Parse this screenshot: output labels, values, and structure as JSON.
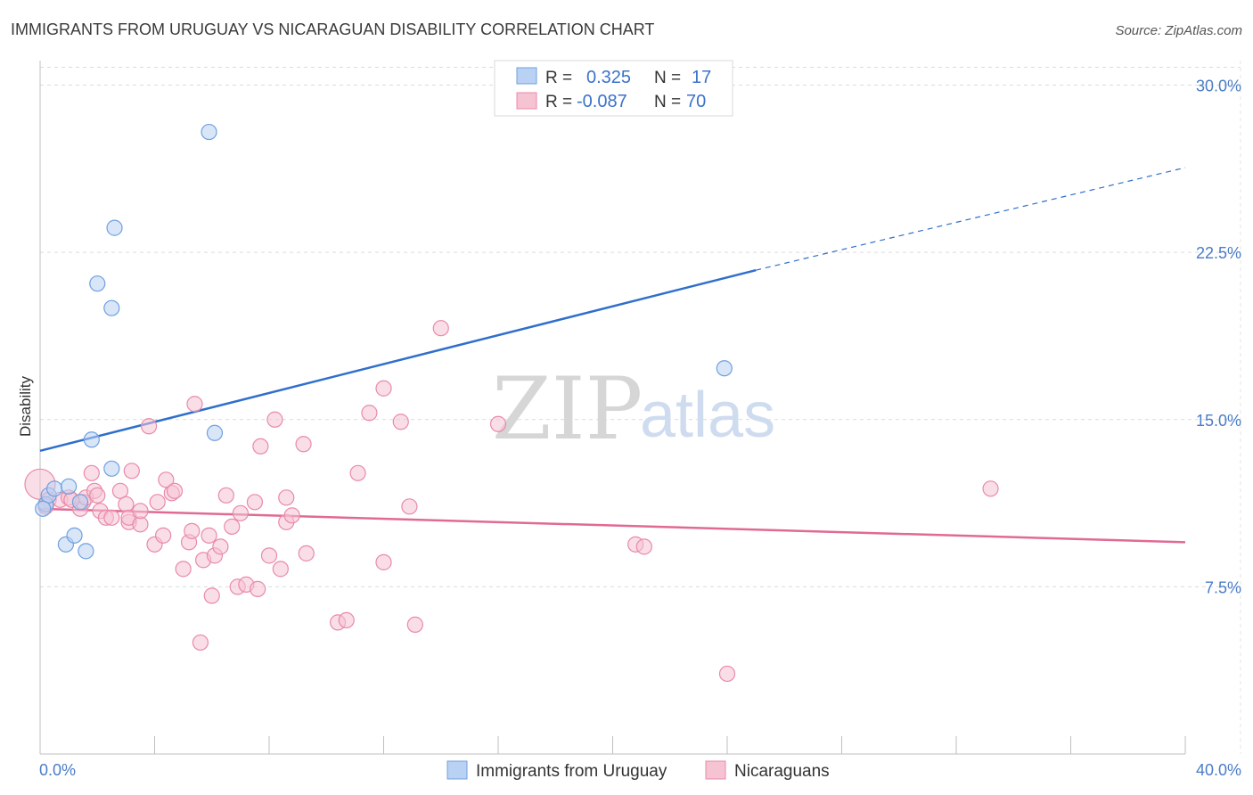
{
  "chart_data": {
    "type": "scatter",
    "title": "IMMIGRANTS FROM URUGUAY VS NICARAGUAN DISABILITY CORRELATION CHART",
    "source": "Source: ZipAtlas.com",
    "ylabel": "Disability",
    "xlabel": "",
    "xlim": [
      0,
      40
    ],
    "ylim": [
      0,
      31.5
    ],
    "x_tick_labels": [
      "0.0%",
      "40.0%"
    ],
    "y_ticks": [
      7.5,
      15.0,
      22.5,
      30.0
    ],
    "y_tick_labels": [
      "7.5%",
      "15.0%",
      "22.5%",
      "30.0%"
    ],
    "grid": true,
    "watermark": {
      "zip": "ZIP",
      "atlas": "atlas"
    },
    "legend": {
      "r_label": "R =",
      "n_label": "N =",
      "entries": [
        {
          "r": "0.325",
          "n": "17"
        },
        {
          "r": "-0.087",
          "n": "70"
        }
      ]
    },
    "series": [
      {
        "name": "Immigrants from Uruguay",
        "color": "#6fa0e0",
        "fill": "#b9d2f3",
        "trend_color": "#2f6fcc",
        "trend": {
          "x0": 0,
          "y0": 13.6,
          "x1": 25,
          "y1": 21.7,
          "dash_to_x": 40,
          "dash_to_y": 26.3
        },
        "points": [
          [
            0.2,
            11.2
          ],
          [
            0.3,
            11.6
          ],
          [
            0.5,
            11.9
          ],
          [
            0.9,
            9.4
          ],
          [
            1.0,
            12.0
          ],
          [
            1.2,
            9.8
          ],
          [
            1.4,
            11.3
          ],
          [
            1.6,
            9.1
          ],
          [
            1.8,
            14.1
          ],
          [
            2.0,
            21.1
          ],
          [
            2.5,
            12.8
          ],
          [
            2.5,
            20.0
          ],
          [
            2.6,
            23.6
          ],
          [
            5.9,
            27.9
          ],
          [
            6.1,
            14.4
          ],
          [
            23.9,
            17.3
          ],
          [
            0.1,
            11.0
          ]
        ]
      },
      {
        "name": "Nicaraguans",
        "color": "#e88aa8",
        "fill": "#f6c3d3",
        "trend_color": "#e06a94",
        "trend": {
          "x0": 0,
          "y0": 11.0,
          "x1": 40,
          "y1": 9.5
        },
        "points": [
          [
            0.0,
            12.1
          ],
          [
            0.3,
            11.4
          ],
          [
            0.7,
            11.4
          ],
          [
            1.0,
            11.5
          ],
          [
            1.4,
            11.0
          ],
          [
            1.5,
            11.3
          ],
          [
            1.6,
            11.5
          ],
          [
            1.8,
            12.6
          ],
          [
            1.9,
            11.8
          ],
          [
            2.1,
            10.9
          ],
          [
            2.3,
            10.6
          ],
          [
            2.5,
            10.6
          ],
          [
            2.8,
            11.8
          ],
          [
            3.0,
            11.2
          ],
          [
            3.1,
            10.4
          ],
          [
            3.1,
            10.6
          ],
          [
            3.2,
            12.7
          ],
          [
            3.5,
            10.3
          ],
          [
            3.5,
            10.9
          ],
          [
            3.8,
            14.7
          ],
          [
            4.0,
            9.4
          ],
          [
            4.1,
            11.3
          ],
          [
            4.3,
            9.8
          ],
          [
            4.4,
            12.3
          ],
          [
            4.6,
            11.7
          ],
          [
            4.7,
            11.8
          ],
          [
            5.0,
            8.3
          ],
          [
            5.2,
            9.5
          ],
          [
            5.3,
            10.0
          ],
          [
            5.4,
            15.7
          ],
          [
            5.6,
            5.0
          ],
          [
            5.7,
            8.7
          ],
          [
            5.9,
            9.8
          ],
          [
            6.0,
            7.1
          ],
          [
            6.1,
            8.9
          ],
          [
            6.3,
            9.3
          ],
          [
            6.5,
            11.6
          ],
          [
            6.7,
            10.2
          ],
          [
            6.9,
            7.5
          ],
          [
            7.0,
            10.8
          ],
          [
            7.2,
            7.6
          ],
          [
            7.5,
            11.3
          ],
          [
            7.6,
            7.4
          ],
          [
            7.7,
            13.8
          ],
          [
            8.0,
            8.9
          ],
          [
            8.2,
            15.0
          ],
          [
            8.4,
            8.3
          ],
          [
            8.6,
            11.5
          ],
          [
            8.6,
            10.4
          ],
          [
            8.8,
            10.7
          ],
          [
            9.2,
            13.9
          ],
          [
            9.3,
            9.0
          ],
          [
            10.4,
            5.9
          ],
          [
            10.7,
            6.0
          ],
          [
            11.1,
            12.6
          ],
          [
            11.5,
            15.3
          ],
          [
            12.0,
            8.6
          ],
          [
            12.0,
            16.4
          ],
          [
            12.6,
            14.9
          ],
          [
            12.9,
            11.1
          ],
          [
            13.1,
            5.8
          ],
          [
            14.0,
            19.1
          ],
          [
            16.0,
            14.8
          ],
          [
            20.8,
            9.4
          ],
          [
            21.1,
            9.3
          ],
          [
            24.0,
            3.6
          ],
          [
            33.2,
            11.9
          ],
          [
            0.2,
            11.1
          ],
          [
            1.1,
            11.4
          ],
          [
            2.0,
            11.6
          ]
        ]
      }
    ]
  }
}
